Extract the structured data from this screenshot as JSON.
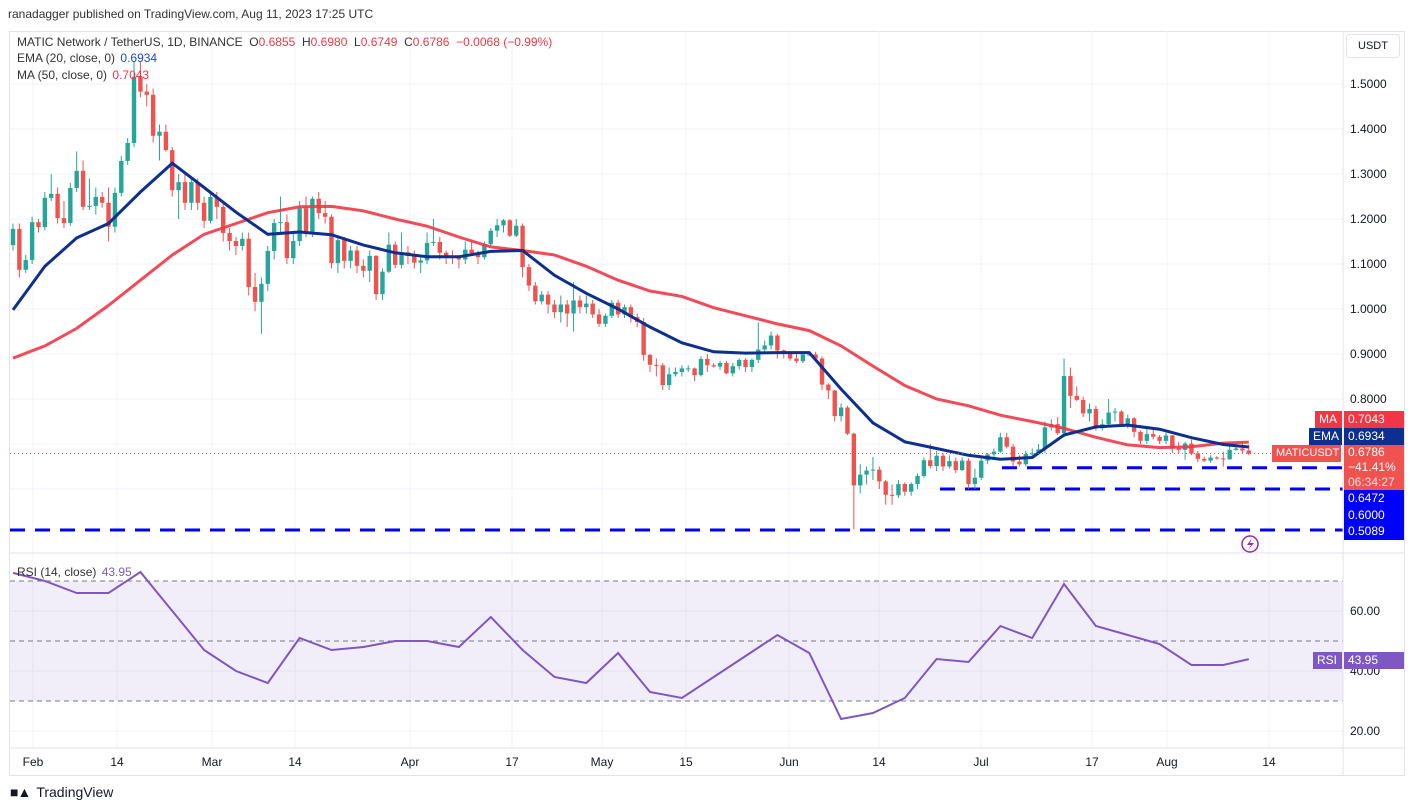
{
  "header": {
    "published": "ranadagger published on TradingView.com, Aug 11, 2023 17:25 UTC"
  },
  "legend": {
    "symbol": "MATIC Network / TetherUS, 1D, BINANCE",
    "o_label": "O",
    "o": "0.6855",
    "h_label": "H",
    "h": "0.6980",
    "l_label": "L",
    "l": "0.6749",
    "c_label": "C",
    "c": "0.6786",
    "change": "−0.0068 (−0.99%)",
    "ema_label": "EMA (20, close, 0)",
    "ema_value": "0.6934",
    "ma_label": "MA (50, close, 0)",
    "ma_value": "0.7043",
    "rsi_label": "RSI (14, close)",
    "rsi_value": "43.95"
  },
  "price_axis": {
    "currency": "USDT",
    "ticks": [
      "1.5000",
      "1.4000",
      "1.3000",
      "1.2000",
      "1.1000",
      "1.0000",
      "0.9000",
      "0.8000"
    ],
    "ma_tag": "MA",
    "ma_value": "0.7043",
    "ema_tag": "EMA",
    "ema_value": "0.6934",
    "symbol_tag": "MATICUSDT",
    "last_price": "0.6786",
    "last_change": "−41.41%",
    "countdown": "06:34:27",
    "levels": [
      "0.6472",
      "0.6000",
      "0.5089"
    ]
  },
  "rsi_axis": {
    "ticks": [
      "60.00",
      "40.00",
      "20.00"
    ],
    "tag": "RSI",
    "value": "43.95"
  },
  "time_axis": [
    "Feb",
    "14",
    "Mar",
    "14",
    "Apr",
    "17",
    "May",
    "15",
    "Jun",
    "14",
    "Jul",
    "17",
    "Aug",
    "14"
  ],
  "footer": {
    "brand": "TradingView"
  },
  "colors": {
    "up": "#26a69a",
    "down": "#ef5350",
    "ema": "#0d2f8f",
    "ma": "#f23645",
    "rsi": "#7e57c2",
    "levels": "#0000ff"
  },
  "icons": [
    "lightning-icon",
    "tradingview-logo-icon"
  ],
  "chart_data": {
    "type": "candlestick",
    "title": "MATIC Network / TetherUS, 1D, BINANCE",
    "y_range": [
      0.48,
      1.58
    ],
    "x_ticks": [
      "Feb",
      "14",
      "Mar",
      "14",
      "Apr",
      "17",
      "May",
      "15",
      "Jun",
      "14",
      "Jul",
      "17",
      "Aug",
      "14"
    ],
    "y_ticks": [
      1.5,
      1.4,
      1.3,
      1.2,
      1.1,
      1.0,
      0.9,
      0.8,
      0.7,
      0.6
    ],
    "grid": true,
    "candles_ohlc": [
      [
        1.142,
        1.19,
        1.13,
        1.178
      ],
      [
        1.178,
        1.19,
        1.07,
        1.087
      ],
      [
        1.087,
        1.12,
        1.08,
        1.109
      ],
      [
        1.109,
        1.205,
        1.1,
        1.193
      ],
      [
        1.193,
        1.2,
        1.17,
        1.182
      ],
      [
        1.182,
        1.26,
        1.175,
        1.247
      ],
      [
        1.247,
        1.3,
        1.24,
        1.256
      ],
      [
        1.256,
        1.27,
        1.19,
        1.202
      ],
      [
        1.202,
        1.24,
        1.18,
        1.191
      ],
      [
        1.191,
        1.28,
        1.185,
        1.269
      ],
      [
        1.269,
        1.35,
        1.26,
        1.307
      ],
      [
        1.307,
        1.33,
        1.22,
        1.227
      ],
      [
        1.227,
        1.29,
        1.22,
        1.229
      ],
      [
        1.229,
        1.27,
        1.21,
        1.249
      ],
      [
        1.249,
        1.26,
        1.225,
        1.236
      ],
      [
        1.236,
        1.27,
        1.15,
        1.183
      ],
      [
        1.183,
        1.27,
        1.17,
        1.258
      ],
      [
        1.258,
        1.34,
        1.25,
        1.329
      ],
      [
        1.329,
        1.38,
        1.32,
        1.369
      ],
      [
        1.369,
        1.55,
        1.36,
        1.516
      ],
      [
        1.516,
        1.55,
        1.47,
        1.483
      ],
      [
        1.483,
        1.5,
        1.45,
        1.476
      ],
      [
        1.476,
        1.49,
        1.37,
        1.385
      ],
      [
        1.385,
        1.41,
        1.33,
        1.394
      ],
      [
        1.394,
        1.41,
        1.35,
        1.353
      ],
      [
        1.353,
        1.36,
        1.25,
        1.264
      ],
      [
        1.264,
        1.3,
        1.2,
        1.282
      ],
      [
        1.282,
        1.3,
        1.22,
        1.236
      ],
      [
        1.236,
        1.29,
        1.22,
        1.282
      ],
      [
        1.282,
        1.29,
        1.22,
        1.236
      ],
      [
        1.236,
        1.25,
        1.18,
        1.196
      ],
      [
        1.196,
        1.26,
        1.19,
        1.249
      ],
      [
        1.249,
        1.26,
        1.2,
        1.227
      ],
      [
        1.227,
        1.24,
        1.15,
        1.169
      ],
      [
        1.169,
        1.18,
        1.13,
        1.151
      ],
      [
        1.151,
        1.16,
        1.12,
        1.14
      ],
      [
        1.14,
        1.17,
        1.13,
        1.156
      ],
      [
        1.156,
        1.17,
        1.03,
        1.049
      ],
      [
        1.049,
        1.08,
        0.995,
        1.016
      ],
      [
        1.016,
        1.07,
        0.945,
        1.056
      ],
      [
        1.056,
        1.14,
        1.04,
        1.129
      ],
      [
        1.129,
        1.2,
        1.11,
        1.191
      ],
      [
        1.191,
        1.25,
        1.17,
        1.193
      ],
      [
        1.193,
        1.21,
        1.1,
        1.113
      ],
      [
        1.113,
        1.17,
        1.1,
        1.151
      ],
      [
        1.151,
        1.24,
        1.14,
        1.224
      ],
      [
        1.224,
        1.25,
        1.16,
        1.172
      ],
      [
        1.172,
        1.25,
        1.16,
        1.245
      ],
      [
        1.245,
        1.26,
        1.2,
        1.213
      ],
      [
        1.213,
        1.24,
        1.19,
        1.205
      ],
      [
        1.205,
        1.21,
        1.09,
        1.102
      ],
      [
        1.102,
        1.16,
        1.08,
        1.153
      ],
      [
        1.153,
        1.16,
        1.09,
        1.107
      ],
      [
        1.107,
        1.14,
        1.09,
        1.13
      ],
      [
        1.13,
        1.14,
        1.08,
        1.096
      ],
      [
        1.096,
        1.11,
        1.07,
        1.085
      ],
      [
        1.085,
        1.13,
        1.06,
        1.118
      ],
      [
        1.118,
        1.12,
        1.02,
        1.033
      ],
      [
        1.033,
        1.09,
        1.02,
        1.083
      ],
      [
        1.083,
        1.17,
        1.08,
        1.143
      ],
      [
        1.143,
        1.15,
        1.09,
        1.098
      ],
      [
        1.098,
        1.17,
        1.09,
        1.126
      ],
      [
        1.126,
        1.14,
        1.1,
        1.118
      ],
      [
        1.118,
        1.13,
        1.09,
        1.103
      ],
      [
        1.103,
        1.12,
        1.08,
        1.108
      ],
      [
        1.108,
        1.17,
        1.1,
        1.147
      ],
      [
        1.147,
        1.2,
        1.14,
        1.149
      ],
      [
        1.149,
        1.16,
        1.11,
        1.125
      ],
      [
        1.125,
        1.13,
        1.1,
        1.116
      ],
      [
        1.116,
        1.13,
        1.1,
        1.113
      ],
      [
        1.113,
        1.12,
        1.09,
        1.11
      ],
      [
        1.11,
        1.15,
        1.1,
        1.132
      ],
      [
        1.132,
        1.15,
        1.12,
        1.124
      ],
      [
        1.124,
        1.13,
        1.1,
        1.115
      ],
      [
        1.115,
        1.15,
        1.11,
        1.144
      ],
      [
        1.144,
        1.18,
        1.14,
        1.174
      ],
      [
        1.174,
        1.2,
        1.16,
        1.186
      ],
      [
        1.186,
        1.2,
        1.17,
        1.197
      ],
      [
        1.197,
        1.2,
        1.16,
        1.163
      ],
      [
        1.163,
        1.2,
        1.16,
        1.185
      ],
      [
        1.185,
        1.19,
        1.07,
        1.093
      ],
      [
        1.093,
        1.1,
        1.04,
        1.052
      ],
      [
        1.052,
        1.06,
        1.01,
        1.017
      ],
      [
        1.017,
        1.04,
        1.01,
        1.032
      ],
      [
        1.032,
        1.04,
        0.99,
        1.01
      ],
      [
        1.01,
        1.02,
        0.98,
        0.993
      ],
      [
        0.993,
        1.03,
        0.97,
        1.01
      ],
      [
        1.01,
        1.02,
        0.96,
        0.99
      ],
      [
        0.99,
        1.06,
        0.95,
        1.019
      ],
      [
        1.019,
        1.03,
        0.99,
        1.004
      ],
      [
        1.004,
        1.03,
        0.99,
        1.012
      ],
      [
        1.012,
        1.02,
        0.98,
        0.988
      ],
      [
        0.988,
        1.0,
        0.96,
        0.967
      ],
      [
        0.967,
        0.99,
        0.96,
        0.985
      ],
      [
        0.985,
        1.02,
        0.98,
        1.014
      ],
      [
        1.014,
        1.02,
        0.98,
        0.988
      ],
      [
        0.988,
        1.01,
        0.98,
        1.004
      ],
      [
        1.004,
        1.01,
        0.97,
        0.982
      ],
      [
        0.982,
        0.99,
        0.96,
        0.971
      ],
      [
        0.971,
        0.98,
        0.885,
        0.898
      ],
      [
        0.898,
        0.9,
        0.86,
        0.876
      ],
      [
        0.876,
        0.89,
        0.85,
        0.875
      ],
      [
        0.875,
        0.88,
        0.82,
        0.831
      ],
      [
        0.831,
        0.87,
        0.82,
        0.855
      ],
      [
        0.855,
        0.87,
        0.85,
        0.86
      ],
      [
        0.86,
        0.875,
        0.85,
        0.868
      ],
      [
        0.868,
        0.875,
        0.86,
        0.868
      ],
      [
        0.868,
        0.87,
        0.84,
        0.853
      ],
      [
        0.853,
        0.895,
        0.85,
        0.889
      ],
      [
        0.889,
        0.9,
        0.86,
        0.875
      ],
      [
        0.875,
        0.88,
        0.87,
        0.872
      ],
      [
        0.872,
        0.885,
        0.865,
        0.88
      ],
      [
        0.88,
        0.885,
        0.855,
        0.857
      ],
      [
        0.857,
        0.88,
        0.85,
        0.873
      ],
      [
        0.873,
        0.89,
        0.865,
        0.887
      ],
      [
        0.887,
        0.89,
        0.86,
        0.871
      ],
      [
        0.871,
        0.89,
        0.86,
        0.887
      ],
      [
        0.887,
        0.97,
        0.88,
        0.91
      ],
      [
        0.91,
        0.93,
        0.9,
        0.919
      ],
      [
        0.919,
        0.95,
        0.91,
        0.941
      ],
      [
        0.941,
        0.945,
        0.89,
        0.908
      ],
      [
        0.908,
        0.91,
        0.89,
        0.901
      ],
      [
        0.901,
        0.905,
        0.885,
        0.89
      ],
      [
        0.89,
        0.9,
        0.88,
        0.884
      ],
      [
        0.884,
        0.905,
        0.88,
        0.899
      ],
      [
        0.899,
        0.905,
        0.895,
        0.899
      ],
      [
        0.899,
        0.905,
        0.885,
        0.89
      ],
      [
        0.89,
        0.895,
        0.82,
        0.832
      ],
      [
        0.832,
        0.835,
        0.8,
        0.819
      ],
      [
        0.819,
        0.82,
        0.75,
        0.762
      ],
      [
        0.762,
        0.79,
        0.75,
        0.781
      ],
      [
        0.781,
        0.785,
        0.72,
        0.723
      ],
      [
        0.723,
        0.725,
        0.51,
        0.608
      ],
      [
        0.608,
        0.655,
        0.59,
        0.632
      ],
      [
        0.632,
        0.65,
        0.61,
        0.641
      ],
      [
        0.641,
        0.671,
        0.62,
        0.643
      ],
      [
        0.643,
        0.65,
        0.6,
        0.617
      ],
      [
        0.617,
        0.62,
        0.565,
        0.587
      ],
      [
        0.587,
        0.61,
        0.565,
        0.586
      ],
      [
        0.586,
        0.62,
        0.58,
        0.611
      ],
      [
        0.611,
        0.615,
        0.585,
        0.594
      ],
      [
        0.594,
        0.615,
        0.585,
        0.611
      ],
      [
        0.611,
        0.635,
        0.6,
        0.629
      ],
      [
        0.629,
        0.67,
        0.625,
        0.664
      ],
      [
        0.664,
        0.7,
        0.645,
        0.651
      ],
      [
        0.651,
        0.685,
        0.64,
        0.674
      ],
      [
        0.674,
        0.68,
        0.64,
        0.65
      ],
      [
        0.65,
        0.675,
        0.645,
        0.662
      ],
      [
        0.662,
        0.67,
        0.635,
        0.642
      ],
      [
        0.642,
        0.67,
        0.64,
        0.663
      ],
      [
        0.663,
        0.668,
        0.6,
        0.611
      ],
      [
        0.611,
        0.645,
        0.6,
        0.625
      ],
      [
        0.625,
        0.67,
        0.62,
        0.663
      ],
      [
        0.663,
        0.68,
        0.655,
        0.677
      ],
      [
        0.677,
        0.69,
        0.67,
        0.683
      ],
      [
        0.683,
        0.725,
        0.68,
        0.715
      ],
      [
        0.715,
        0.725,
        0.69,
        0.694
      ],
      [
        0.694,
        0.7,
        0.65,
        0.661
      ],
      [
        0.661,
        0.675,
        0.65,
        0.655
      ],
      [
        0.655,
        0.685,
        0.65,
        0.678
      ],
      [
        0.678,
        0.69,
        0.67,
        0.679
      ],
      [
        0.679,
        0.7,
        0.675,
        0.688
      ],
      [
        0.688,
        0.75,
        0.68,
        0.737
      ],
      [
        0.737,
        0.755,
        0.73,
        0.744
      ],
      [
        0.744,
        0.76,
        0.72,
        0.724
      ],
      [
        0.724,
        0.89,
        0.715,
        0.851
      ],
      [
        0.851,
        0.87,
        0.78,
        0.807
      ],
      [
        0.807,
        0.828,
        0.795,
        0.798
      ],
      [
        0.798,
        0.805,
        0.76,
        0.768
      ],
      [
        0.768,
        0.79,
        0.75,
        0.778
      ],
      [
        0.778,
        0.785,
        0.73,
        0.735
      ],
      [
        0.735,
        0.755,
        0.73,
        0.744
      ],
      [
        0.744,
        0.8,
        0.74,
        0.77
      ],
      [
        0.77,
        0.78,
        0.75,
        0.772
      ],
      [
        0.772,
        0.775,
        0.74,
        0.744
      ],
      [
        0.744,
        0.765,
        0.735,
        0.757
      ],
      [
        0.757,
        0.76,
        0.715,
        0.727
      ],
      [
        0.727,
        0.73,
        0.7,
        0.707
      ],
      [
        0.707,
        0.735,
        0.7,
        0.722
      ],
      [
        0.722,
        0.737,
        0.71,
        0.716
      ],
      [
        0.716,
        0.72,
        0.7,
        0.707
      ],
      [
        0.707,
        0.725,
        0.7,
        0.719
      ],
      [
        0.719,
        0.72,
        0.68,
        0.69
      ],
      [
        0.69,
        0.705,
        0.68,
        0.687
      ],
      [
        0.687,
        0.705,
        0.665,
        0.701
      ],
      [
        0.701,
        0.71,
        0.675,
        0.679
      ],
      [
        0.679,
        0.685,
        0.66,
        0.667
      ],
      [
        0.667,
        0.672,
        0.66,
        0.663
      ],
      [
        0.663,
        0.675,
        0.658,
        0.67
      ],
      [
        0.67,
        0.673,
        0.665,
        0.668
      ],
      [
        0.668,
        0.683,
        0.65,
        0.666
      ],
      [
        0.666,
        0.7,
        0.665,
        0.687
      ],
      [
        0.687,
        0.7,
        0.685,
        0.69
      ],
      [
        0.69,
        0.705,
        0.68,
        0.6855
      ],
      [
        0.6855,
        0.698,
        0.6749,
        0.6786
      ]
    ],
    "ema20_every_5_candles": [
      0.998,
      1.095,
      1.158,
      1.19,
      1.26,
      1.324,
      1.27,
      1.215,
      1.166,
      1.171,
      1.165,
      1.142,
      1.125,
      1.116,
      1.116,
      1.128,
      1.13,
      1.075,
      1.035,
      1.0,
      0.96,
      0.925,
      0.905,
      0.902,
      0.903,
      0.903,
      0.822,
      0.747,
      0.705,
      0.69,
      0.675,
      0.666,
      0.67,
      0.72,
      0.738,
      0.742,
      0.733,
      0.714,
      0.699,
      0.6934
    ],
    "ma50_every_5_candles": [
      0.891,
      0.918,
      0.957,
      1.008,
      1.064,
      1.12,
      1.166,
      1.19,
      1.214,
      1.227,
      1.228,
      1.218,
      1.2,
      1.184,
      1.16,
      1.138,
      1.13,
      1.12,
      1.095,
      1.064,
      1.04,
      1.028,
      1.003,
      0.985,
      0.967,
      0.952,
      0.918,
      0.873,
      0.83,
      0.8,
      0.785,
      0.764,
      0.75,
      0.735,
      0.715,
      0.698,
      0.692,
      0.694,
      0.702,
      0.7043
    ],
    "rsi14_every_5_candles": [
      72.7,
      70,
      66,
      66,
      73,
      60,
      47,
      40,
      36,
      51,
      47,
      48,
      50,
      50,
      48,
      58,
      47,
      38,
      36,
      46,
      33,
      31,
      38,
      45,
      52,
      46,
      24,
      26,
      31,
      44,
      43,
      55,
      51,
      69,
      55,
      52,
      49,
      42,
      42,
      43.95
    ],
    "rsi_range": [
      10,
      80
    ],
    "rsi_bands": [
      70,
      50,
      30
    ],
    "horizontal_levels": [
      0.6472,
      0.6,
      0.5089
    ],
    "last_price": 0.6786
  }
}
